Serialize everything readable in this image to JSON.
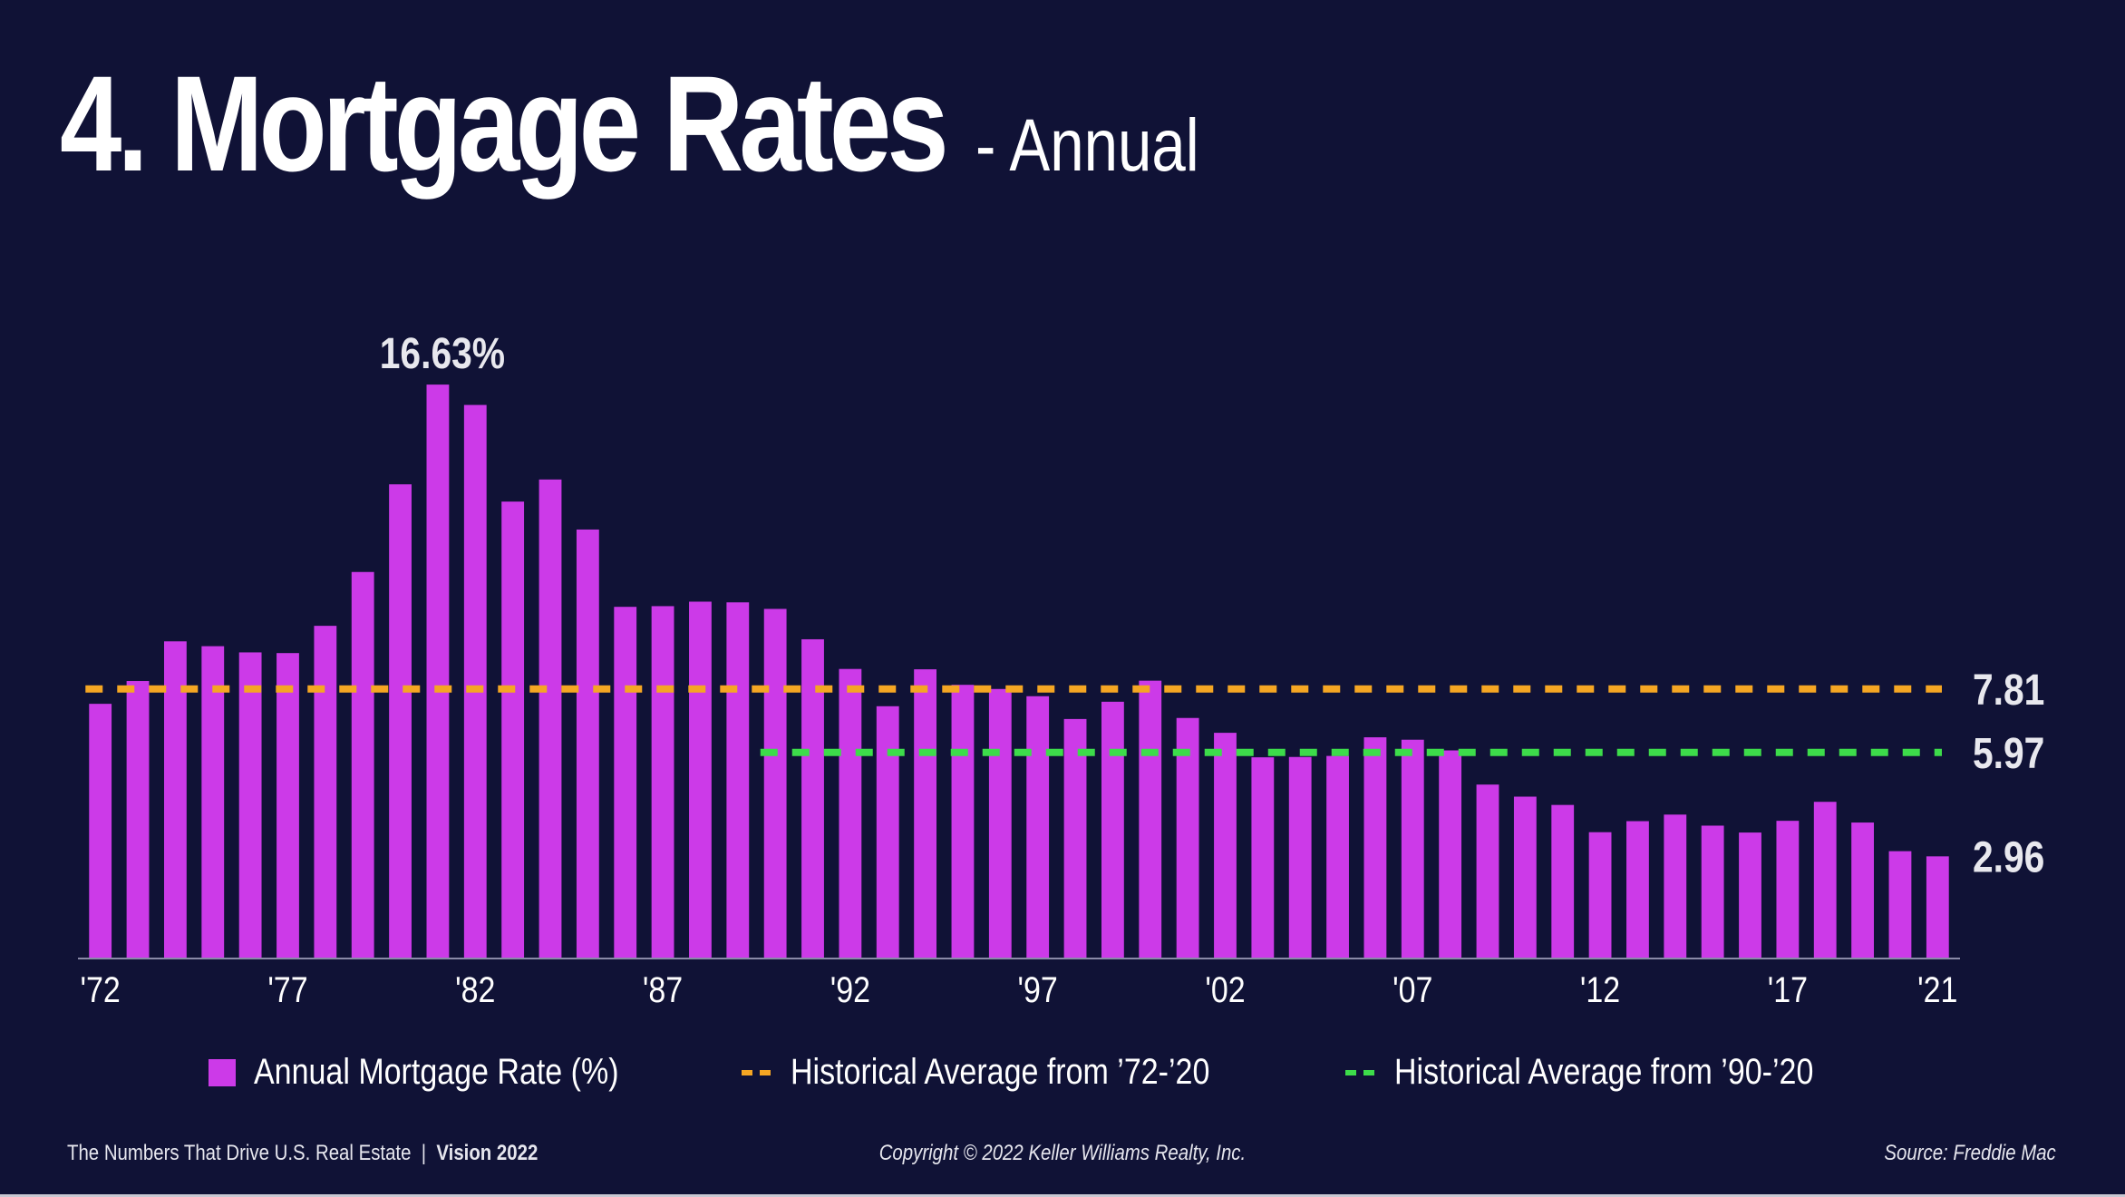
{
  "title": {
    "main": "4. Mortgage Rates",
    "sub": "- Annual"
  },
  "chart_data": {
    "type": "bar",
    "x": [
      1972,
      1973,
      1974,
      1975,
      1976,
      1977,
      1978,
      1979,
      1980,
      1981,
      1982,
      1983,
      1984,
      1985,
      1986,
      1987,
      1988,
      1989,
      1990,
      1991,
      1992,
      1993,
      1994,
      1995,
      1996,
      1997,
      1998,
      1999,
      2000,
      2001,
      2002,
      2003,
      2004,
      2005,
      2006,
      2007,
      2008,
      2009,
      2010,
      2011,
      2012,
      2013,
      2014,
      2015,
      2016,
      2017,
      2018,
      2019,
      2020,
      2021
    ],
    "tick_labels": [
      "'72",
      "'77",
      "'82",
      "'87",
      "'92",
      "'97",
      "'02",
      "'07",
      "'12",
      "'17",
      "'21"
    ],
    "tick_years": [
      1972,
      1977,
      1982,
      1987,
      1992,
      1997,
      2002,
      2007,
      2012,
      2017,
      2021
    ],
    "values": [
      7.38,
      8.04,
      9.19,
      9.05,
      8.87,
      8.85,
      9.64,
      11.2,
      13.74,
      16.63,
      16.04,
      13.24,
      13.88,
      12.43,
      10.19,
      10.21,
      10.34,
      10.32,
      10.13,
      9.25,
      8.39,
      7.31,
      8.38,
      7.93,
      7.81,
      7.6,
      6.94,
      7.44,
      8.05,
      6.97,
      6.54,
      5.83,
      5.84,
      5.87,
      6.41,
      6.34,
      6.03,
      5.04,
      4.69,
      4.45,
      3.66,
      3.98,
      4.17,
      3.85,
      3.65,
      3.99,
      4.54,
      3.94,
      3.11,
      2.96
    ],
    "ylim": [
      0,
      17.5
    ],
    "peak_label": "16.63%",
    "averages": [
      {
        "name": "Historical Average from ’72-’20",
        "value": 7.81,
        "from": 1972,
        "to": 2021,
        "label": "7.81",
        "color": "#f5a623"
      },
      {
        "name": "Historical Average from ’90-’20",
        "value": 5.97,
        "from": 1990,
        "to": 2021,
        "label": "5.97",
        "color": "#3ddc4a"
      }
    ],
    "end_label": "2.96",
    "series": [
      {
        "name": "Annual Mortgage Rate (%)",
        "color": "#cc3ae8"
      }
    ]
  },
  "legend": {
    "bars": "Annual Mortgage Rate (%)",
    "avg1": "Historical Average from ’72-’20",
    "avg2": "Historical Average from ’90-’20"
  },
  "footer": {
    "left_text": "The Numbers That Drive U.S. Real Estate",
    "separator": "|",
    "left_bold": "Vision 2022",
    "center": "Copyright © 2022 Keller Williams Realty, Inc.",
    "right": "Source: Freddie Mac"
  },
  "colors": {
    "background": "#101236",
    "bar": "#cc3ae8",
    "avg1": "#f5a623",
    "avg2": "#3ddc4a"
  }
}
